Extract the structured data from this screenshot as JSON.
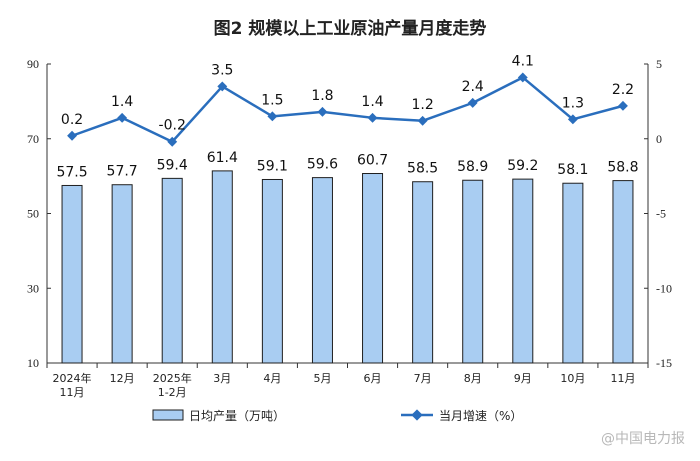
{
  "chart_data": {
    "type": "bar+line",
    "title": "图2  规模以上工业原油产量月度走势",
    "categories": [
      [
        "2024年",
        "11月"
      ],
      [
        "12月"
      ],
      [
        "2025年",
        "1-2月"
      ],
      [
        "3月"
      ],
      [
        "4月"
      ],
      [
        "5月"
      ],
      [
        "6月"
      ],
      [
        "7月"
      ],
      [
        "8月"
      ],
      [
        "9月"
      ],
      [
        "10月"
      ],
      [
        "11月"
      ]
    ],
    "series": [
      {
        "name": "日均产量（万吨）",
        "kind": "bar",
        "axis": "left",
        "values": [
          57.5,
          57.7,
          59.4,
          61.4,
          59.1,
          59.6,
          60.7,
          58.5,
          58.9,
          59.2,
          58.1,
          58.8
        ],
        "labels": [
          "57.5",
          "57.7",
          "59.4",
          "61.4",
          "59.1",
          "59.6",
          "60.7",
          "58.5",
          "58.9",
          "59.2",
          "58.1",
          "58.8"
        ]
      },
      {
        "name": "当月增速（%）",
        "kind": "line",
        "axis": "right",
        "values": [
          0.2,
          1.4,
          -0.2,
          3.5,
          1.5,
          1.8,
          1.4,
          1.2,
          2.4,
          4.1,
          1.3,
          2.2
        ],
        "labels": [
          "0.2",
          "1.4",
          "-0.2",
          "3.5",
          "1.5",
          "1.8",
          "1.4",
          "1.2",
          "2.4",
          "4.1",
          "1.3",
          "2.2"
        ]
      }
    ],
    "y_left": {
      "min": 10,
      "max": 90,
      "ticks": [
        10,
        30,
        50,
        70,
        90
      ]
    },
    "y_right": {
      "min": -15,
      "max": 5,
      "ticks": [
        -15,
        -10,
        -5,
        0,
        5
      ]
    },
    "colors": {
      "bar_fill": "#a9cdf2",
      "bar_stroke": "#1f1f1f",
      "line": "#2a6ebd",
      "axis": "#333333"
    },
    "legend_position": "bottom"
  },
  "watermark": "@中国电力报"
}
